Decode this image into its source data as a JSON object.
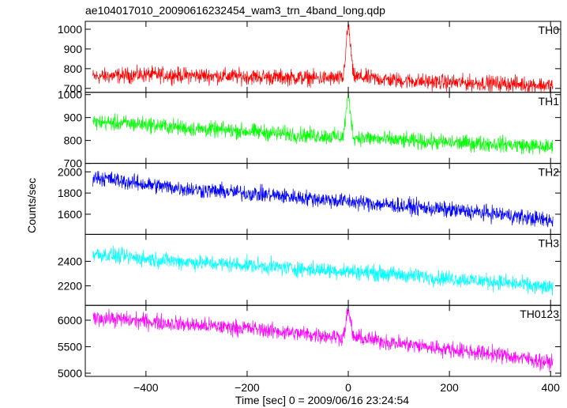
{
  "chart_data": {
    "type": "line",
    "title": "ae104017010_20090616232454_wam3_trn_4band_long.qdp",
    "xlabel": "Time [sec] 0 = 2009/06/16 23:24:54",
    "ylabel": "Counts/sec",
    "xlim": [
      -520,
      420
    ],
    "xticks": [
      -400,
      -200,
      0,
      200,
      400
    ],
    "grid": false,
    "panels": [
      {
        "name": "TH0",
        "color": "#ff0000",
        "ylim": [
          680,
          1040
        ],
        "yticks": [
          700,
          800,
          900,
          1000
        ],
        "x": [
          -500,
          -400,
          -300,
          -200,
          -100,
          -10,
          0,
          10,
          100,
          200,
          300,
          400
        ],
        "y": [
          760,
          770,
          765,
          760,
          755,
          750,
          1030,
          760,
          740,
          730,
          725,
          715
        ]
      },
      {
        "name": "TH1",
        "color": "#00ff00",
        "ylim": [
          700,
          1010
        ],
        "yticks": [
          700,
          800,
          900,
          1000
        ],
        "x": [
          -500,
          -400,
          -300,
          -200,
          -100,
          -10,
          0,
          10,
          100,
          200,
          300,
          400
        ],
        "y": [
          880,
          870,
          850,
          840,
          825,
          815,
          1000,
          815,
          800,
          790,
          785,
          770
        ]
      },
      {
        "name": "TH2",
        "color": "#0000ff",
        "ylim": [
          1410,
          2080
        ],
        "yticks": [
          1600,
          1800,
          2000
        ],
        "x": [
          -500,
          -400,
          -300,
          -200,
          -100,
          0,
          100,
          200,
          300,
          400
        ],
        "y": [
          1950,
          1880,
          1830,
          1800,
          1760,
          1720,
          1680,
          1640,
          1600,
          1540
        ]
      },
      {
        "name": "TH3",
        "color": "#00ffff",
        "ylim": [
          2040,
          2620
        ],
        "yticks": [
          2200,
          2400
        ],
        "x": [
          -500,
          -400,
          -300,
          -200,
          -100,
          0,
          100,
          200,
          300,
          400
        ],
        "y": [
          2460,
          2420,
          2390,
          2370,
          2340,
          2320,
          2290,
          2260,
          2230,
          2180
        ]
      },
      {
        "name": "TH0123",
        "color": "#ff00ff",
        "ylim": [
          4940,
          6280
        ],
        "yticks": [
          5000,
          5500,
          6000
        ],
        "x": [
          -500,
          -400,
          -300,
          -200,
          -100,
          -10,
          0,
          10,
          100,
          200,
          300,
          400
        ],
        "y": [
          6050,
          5980,
          5900,
          5850,
          5750,
          5680,
          6200,
          5680,
          5560,
          5450,
          5350,
          5200
        ]
      }
    ]
  }
}
